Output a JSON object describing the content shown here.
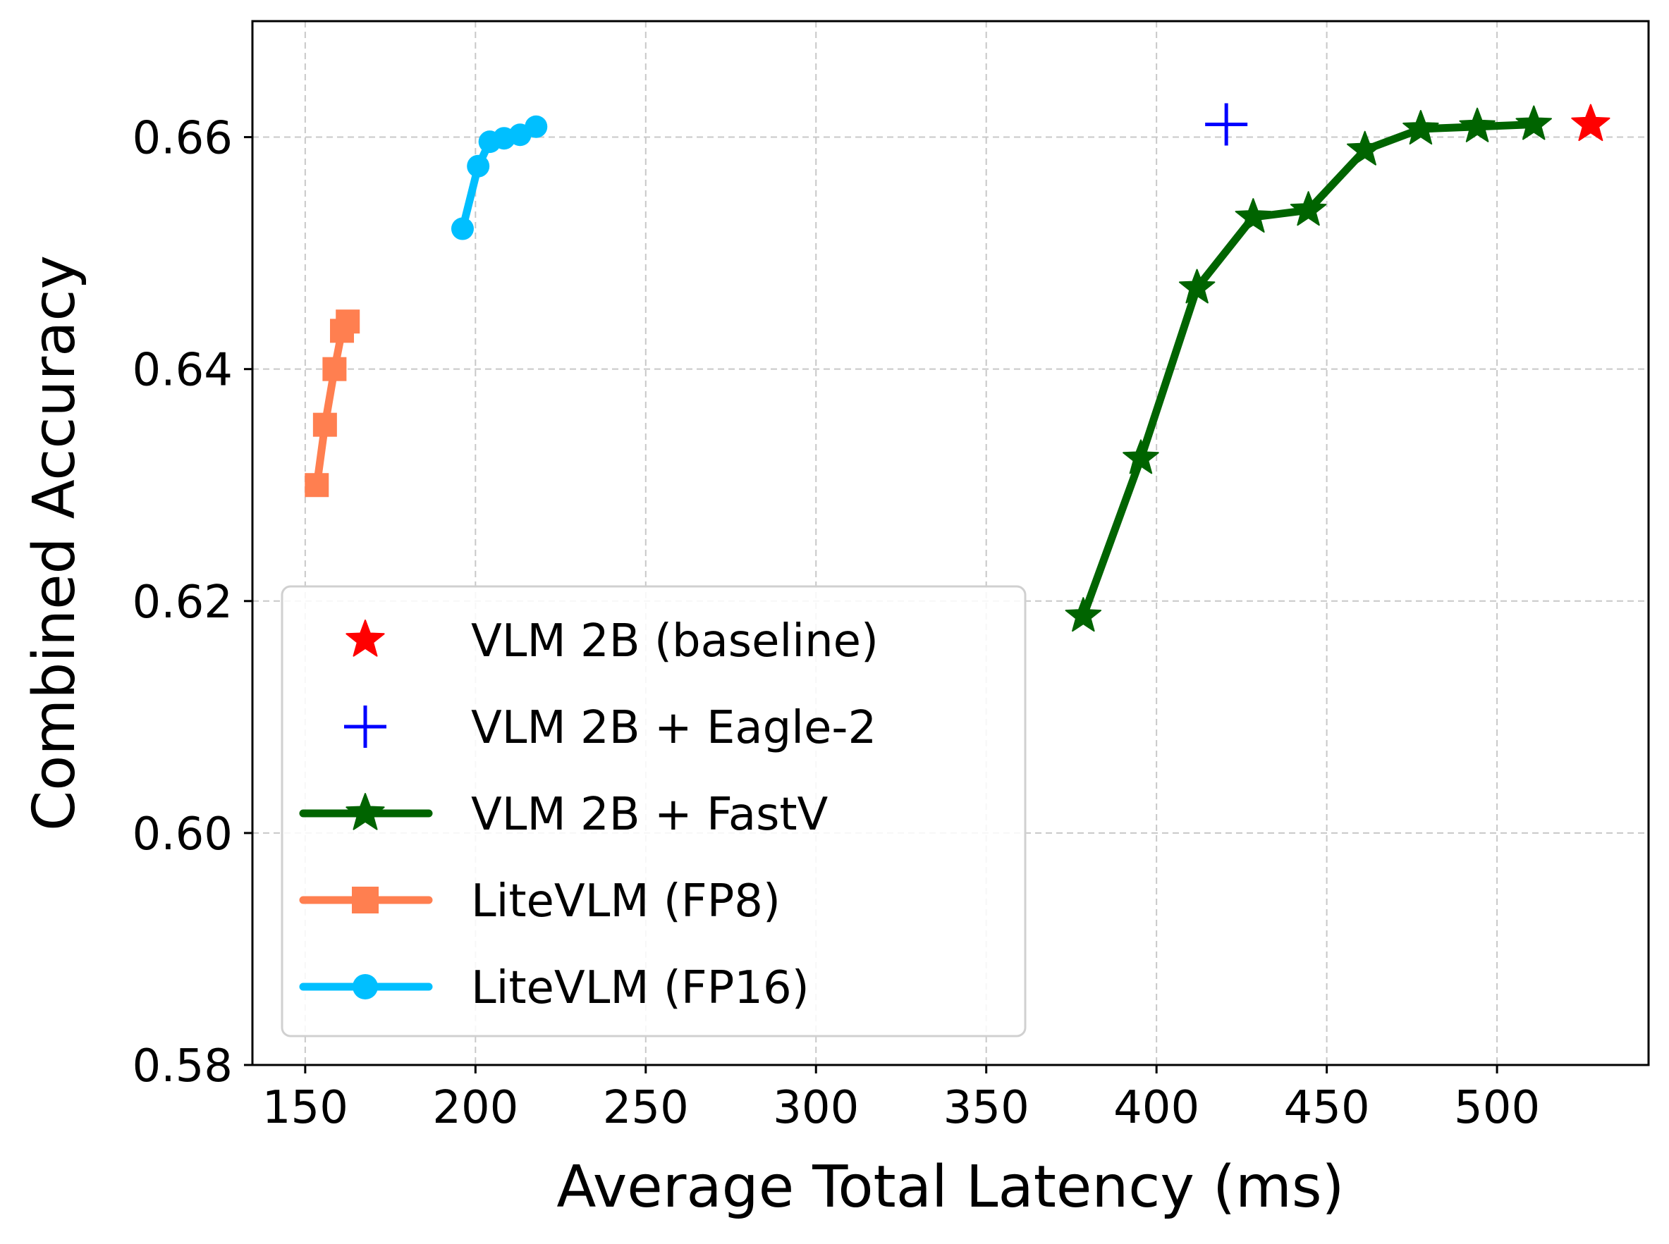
{
  "chart_data": {
    "type": "line",
    "xlabel": "Average Total Latency (ms)",
    "ylabel": "Combined Accuracy",
    "xlim": [
      134.5,
      544.5
    ],
    "ylim": [
      0.58,
      0.67
    ],
    "grid": true,
    "legend_position": "lower-left",
    "x_ticks": [
      {
        "value": 150,
        "label": "150"
      },
      {
        "value": 200,
        "label": "200"
      },
      {
        "value": 250,
        "label": "250"
      },
      {
        "value": 300,
        "label": "300"
      },
      {
        "value": 350,
        "label": "350"
      },
      {
        "value": 400,
        "label": "400"
      },
      {
        "value": 450,
        "label": "450"
      },
      {
        "value": 500,
        "label": "500"
      }
    ],
    "y_ticks": [
      {
        "value": 0.58,
        "label": "0.58"
      },
      {
        "value": 0.6,
        "label": "0.60"
      },
      {
        "value": 0.62,
        "label": "0.62"
      },
      {
        "value": 0.64,
        "label": "0.64"
      },
      {
        "value": 0.66,
        "label": "0.66"
      }
    ],
    "series": [
      {
        "name": "VLM 2B (baseline)",
        "style": "scatter",
        "marker": "star",
        "color": "#ff0000",
        "x": [
          527.5
        ],
        "y": [
          0.6611
        ]
      },
      {
        "name": "VLM 2B + Eagle-2",
        "style": "scatter",
        "marker": "plus",
        "color": "#0000ff",
        "x": [
          420.5
        ],
        "y": [
          0.6611
        ]
      },
      {
        "name": "VLM 2B + FastV",
        "style": "line",
        "marker": "star",
        "color": "#006400",
        "x": [
          378.5,
          395.4,
          411.9,
          428.4,
          444.6,
          461.2,
          477.6,
          494.2,
          510.8
        ],
        "y": [
          0.6187,
          0.6323,
          0.647,
          0.6531,
          0.6537,
          0.6589,
          0.6607,
          0.6609,
          0.6611
        ]
      },
      {
        "name": "LiteVLM (FP8)",
        "style": "line",
        "marker": "square",
        "color": "#ff7f50",
        "x": [
          153.4,
          155.8,
          158.6,
          160.8,
          162.5
        ],
        "y": [
          0.63,
          0.6352,
          0.64,
          0.6433,
          0.6441
        ]
      },
      {
        "name": "LiteVLM (FP16)",
        "style": "line",
        "marker": "circle",
        "color": "#00bfff",
        "x": [
          196.2,
          200.8,
          204.2,
          208.4,
          213.1,
          217.8
        ],
        "y": [
          0.6521,
          0.6575,
          0.6596,
          0.6599,
          0.6602,
          0.6609
        ]
      }
    ]
  }
}
